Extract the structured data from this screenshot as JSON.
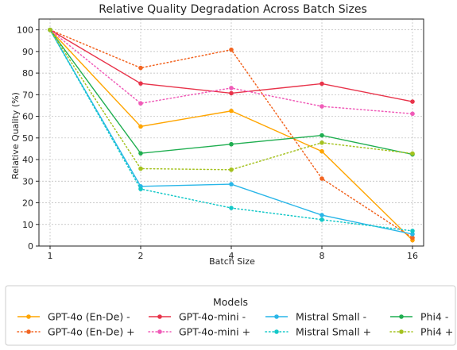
{
  "chart_data": {
    "type": "line",
    "title": "Relative Quality Degradation Across Batch Sizes",
    "xlabel": "Batch Size",
    "ylabel": "Relative Quality (%)",
    "x": [
      1,
      2,
      4,
      8,
      16
    ],
    "x_scale": "log2",
    "ylim": [
      0,
      105
    ],
    "yticks": [
      0,
      10,
      20,
      30,
      40,
      50,
      60,
      70,
      80,
      90,
      100
    ],
    "grid": true,
    "legend": {
      "title": "Models",
      "placement": "bottom"
    },
    "series": [
      {
        "name": "GPT-4o (En-De) -",
        "color": "#FFA500",
        "style": "solid",
        "values": [
          100,
          55.3,
          62.5,
          43.8,
          2.7
        ]
      },
      {
        "name": "GPT-4o (En-De) +",
        "color": "#F26522",
        "style": "dotted",
        "values": [
          100,
          82.4,
          90.8,
          31.2,
          3.8
        ]
      },
      {
        "name": "GPT-4o-mini -",
        "color": "#E8334A",
        "style": "solid",
        "values": [
          100,
          75.2,
          70.7,
          75.1,
          66.8
        ]
      },
      {
        "name": "GPT-4o-mini +",
        "color": "#F05BB8",
        "style": "dotted",
        "values": [
          100,
          66.0,
          73.1,
          64.6,
          61.2
        ]
      },
      {
        "name": "Mistral Small -",
        "color": "#29B6E8",
        "style": "solid",
        "values": [
          100,
          27.6,
          28.6,
          14.3,
          5.5
        ]
      },
      {
        "name": "Mistral Small +",
        "color": "#14C8C8",
        "style": "dotted",
        "values": [
          100,
          26.4,
          17.6,
          12.2,
          7.0
        ]
      },
      {
        "name": "Phi4 -",
        "color": "#1FAE50",
        "style": "solid",
        "values": [
          100,
          42.9,
          47.1,
          51.2,
          42.4
        ]
      },
      {
        "name": "Phi4 +",
        "color": "#A4C21F",
        "style": "dotted",
        "values": [
          100,
          35.8,
          35.3,
          47.8,
          42.8
        ]
      }
    ]
  }
}
